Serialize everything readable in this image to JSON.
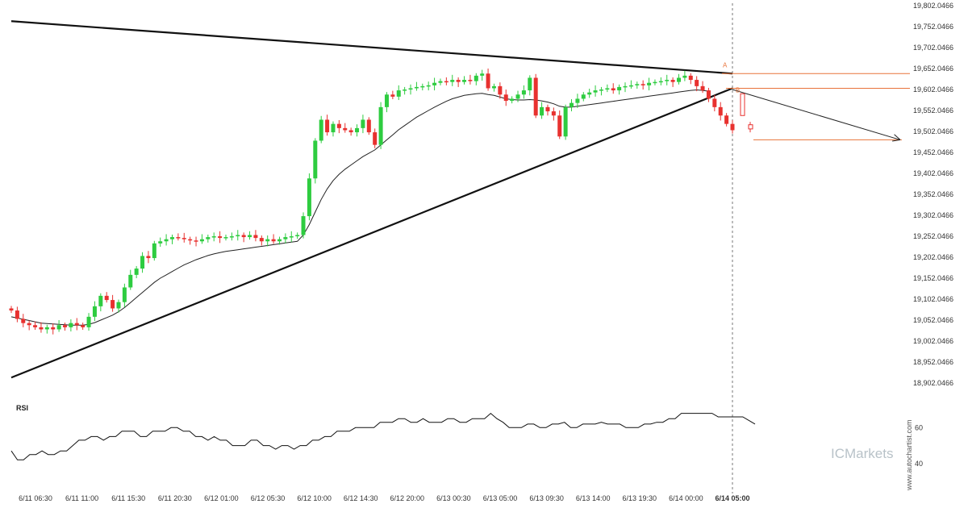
{
  "chart_data": {
    "type": "candlestick",
    "y_ticks": [
      "19,802.0466",
      "19,752.0466",
      "19,702.0466",
      "19,652.0466",
      "19,602.0466",
      "19,552.0466",
      "19,502.0466",
      "19,452.0466",
      "19,402.0466",
      "19,352.0466",
      "19,302.0466",
      "19,252.0466",
      "19,202.0466",
      "19,152.0466",
      "19,102.0466",
      "19,052.0466",
      "19,002.0466",
      "18,952.0466",
      "18,902.0466"
    ],
    "y_tick_values": [
      19802.0466,
      19752.0466,
      19702.0466,
      19652.0466,
      19602.0466,
      19552.0466,
      19502.0466,
      19452.0466,
      19402.0466,
      19352.0466,
      19302.0466,
      19252.0466,
      19202.0466,
      19152.0466,
      19102.0466,
      19052.0466,
      19002.0466,
      18952.0466,
      18902.0466
    ],
    "x_ticks": [
      "6/11 06:30",
      "6/11 11:00",
      "6/11 15:30",
      "6/11 20:30",
      "6/12 01:00",
      "6/12 05:30",
      "6/12 10:00",
      "6/12 14:30",
      "6/12 20:00",
      "6/13 00:30",
      "6/13 05:00",
      "6/13 09:30",
      "6/13 14:00",
      "6/13 19:30",
      "6/14 00:00",
      "6/14 05:00"
    ],
    "close_series": [
      19075,
      19055,
      19045,
      19040,
      19035,
      19030,
      19035,
      19030,
      19040,
      19035,
      19045,
      19040,
      19035,
      19060,
      19085,
      19110,
      19100,
      19080,
      19095,
      19130,
      19160,
      19175,
      19205,
      19200,
      19235,
      19240,
      19245,
      19250,
      19248,
      19245,
      19242,
      19240,
      19245,
      19250,
      19252,
      19248,
      19250,
      19252,
      19255,
      19250,
      19255,
      19248,
      19240,
      19245,
      19240,
      19245,
      19250,
      19252,
      19255,
      19300,
      19390,
      19480,
      19530,
      19500,
      19520,
      19510,
      19505,
      19500,
      19510,
      19530,
      19500,
      19470,
      19560,
      19590,
      19585,
      19600,
      19602,
      19605,
      19608,
      19610,
      19612,
      19618,
      19622,
      19620,
      19625,
      19620,
      19625,
      19622,
      19635,
      19640,
      19605,
      19610,
      19590,
      19575,
      19580,
      19590,
      19600,
      19630,
      19540,
      19560,
      19550,
      19540,
      19490,
      19560,
      19570,
      19580,
      19590,
      19595,
      19600,
      19602,
      19605,
      19600,
      19608,
      19610,
      19612,
      19615,
      19612,
      19618,
      19620,
      19622,
      19625,
      19620,
      19630,
      19635,
      19625,
      19610,
      19600,
      19580,
      19560,
      19540,
      19520,
      19505
    ],
    "ma_series": [
      19060,
      19057,
      19054,
      19051,
      19048,
      19045,
      19044,
      19043,
      19042,
      19041,
      19040,
      19040,
      19040,
      19042,
      19046,
      19052,
      19058,
      19064,
      19072,
      19082,
      19094,
      19106,
      19118,
      19130,
      19142,
      19152,
      19160,
      19168,
      19176,
      19184,
      19190,
      19196,
      19201,
      19206,
      19210,
      19213,
      19216,
      19218,
      19220,
      19222,
      19224,
      19226,
      19228,
      19230,
      19232,
      19234,
      19236,
      19238,
      19240,
      19255,
      19280,
      19310,
      19340,
      19365,
      19385,
      19400,
      19412,
      19422,
      19432,
      19442,
      19450,
      19458,
      19470,
      19482,
      19494,
      19506,
      19516,
      19526,
      19536,
      19544,
      19552,
      19560,
      19567,
      19574,
      19580,
      19584,
      19588,
      19590,
      19592,
      19593,
      19590,
      19588,
      19584,
      19580,
      19578,
      19577,
      19577,
      19578,
      19577,
      19575,
      19572,
      19568,
      19562,
      19560,
      19560,
      19562,
      19564,
      19566,
      19568,
      19570,
      19572,
      19574,
      19576,
      19578,
      19580,
      19582,
      19584,
      19586,
      19588,
      19590,
      19592,
      19594,
      19596,
      19598,
      19600,
      19601,
      19600,
      19598
    ],
    "trendlines": [
      {
        "role": "resistance",
        "from": {
          "x": "6/11 02:00",
          "y": 19765
        },
        "to": {
          "x": "6/14 04:45",
          "y": 19640
        }
      },
      {
        "role": "support",
        "from": {
          "x": "6/11 02:00",
          "y": 18915
        },
        "to": {
          "x": "6/14 04:45",
          "y": 19605
        }
      }
    ],
    "forecast_levels": [
      19640,
      19605,
      19482
    ],
    "forecast_arrow": {
      "from": 19602,
      "to": 19482
    },
    "current_time_marker": "6/14 05:00",
    "pattern_points": [
      "A",
      "B"
    ],
    "rsi": {
      "label": "RSI",
      "ticks": [
        "60",
        "40"
      ],
      "tick_values": [
        60,
        40
      ],
      "ylim": [
        30,
        75
      ],
      "values": [
        47,
        42,
        42,
        45,
        45,
        47,
        45,
        45,
        47,
        47,
        50,
        53,
        53,
        55,
        55,
        53,
        55,
        55,
        58,
        58,
        58,
        55,
        55,
        58,
        58,
        58,
        60,
        60,
        58,
        58,
        55,
        55,
        53,
        55,
        53,
        53,
        50,
        50,
        50,
        53,
        53,
        50,
        50,
        48,
        50,
        50,
        48,
        50,
        50,
        53,
        53,
        55,
        55,
        58,
        58,
        58,
        60,
        60,
        60,
        60,
        63,
        63,
        63,
        65,
        65,
        63,
        63,
        65,
        63,
        63,
        63,
        65,
        65,
        63,
        63,
        65,
        65,
        65,
        68,
        65,
        63,
        60,
        60,
        60,
        62,
        62,
        60,
        60,
        62,
        62,
        63,
        60,
        60,
        62,
        62,
        62,
        63,
        62,
        62,
        62,
        60,
        60,
        60,
        62,
        62,
        63,
        63,
        65,
        65,
        68,
        68,
        68,
        68,
        68,
        68,
        66,
        66,
        66,
        66,
        66,
        64,
        62
      ]
    }
  },
  "brand": {
    "text": "ICMarkets"
  },
  "watermark": {
    "text": "www.autochartist.com"
  }
}
